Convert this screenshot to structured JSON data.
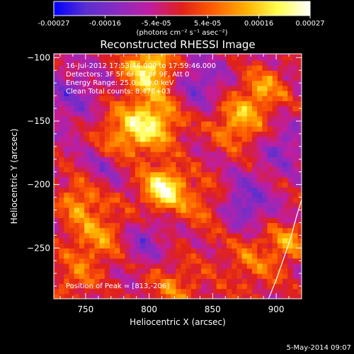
{
  "colorbar": {
    "tick_labels": [
      "-0.00027",
      "-0.00016",
      "-5.4e-05",
      "5.4e-05",
      "0.00016",
      "0.00027"
    ],
    "unit_label": "(photons cm⁻² s⁻¹ asec⁻²)",
    "min": -0.00027,
    "max": 0.00027,
    "stops": [
      "#0000ff",
      "#5a2fd0",
      "#8a2bc0",
      "#c01ea0",
      "#e0201a",
      "#ff6000",
      "#ffb000",
      "#ffff50",
      "#ffffff"
    ]
  },
  "chart_data": {
    "type": "heatmap",
    "title": "Reconstructed RHESSI Image",
    "xlabel": "Heliocentric X (arcsec)",
    "ylabel": "Heliocentric Y (arcsec)",
    "xlim": [
      725,
      920
    ],
    "ylim": [
      -290,
      -97
    ],
    "xticks": [
      {
        "value": 750,
        "label": "750"
      },
      {
        "value": 800,
        "label": "800"
      },
      {
        "value": 850,
        "label": "850"
      },
      {
        "value": 900,
        "label": "900"
      }
    ],
    "yticks": [
      {
        "value": -100,
        "label": "−100"
      },
      {
        "value": -150,
        "label": "−150"
      },
      {
        "value": -200,
        "label": "−200"
      },
      {
        "value": -250,
        "label": "−250"
      }
    ],
    "annotations": [
      "16-Jul-2012 17:53:46.000 to 17:59:46.000",
      "Detectors: 3F 5F 6F 7F 8F 9F, Att 0",
      "Energy Range: 25.0 - 50.0 keV",
      "Clean     Total counts: 8.47E+03"
    ],
    "peak_label": "Position of Peak = [813,-206]",
    "peak": [
      813,
      -206
    ],
    "limb_curve": [
      [
        894,
        -290
      ],
      [
        900,
        -275
      ],
      [
        906,
        -258
      ],
      [
        912,
        -240
      ],
      [
        916,
        -225
      ],
      [
        920,
        -212
      ]
    ],
    "hot_spots": [
      {
        "x": 812,
        "y": -203,
        "value": 0.00027,
        "sigma": 12
      },
      {
        "x": 800,
        "y": -108,
        "value": 0.00024,
        "sigma": 14
      },
      {
        "x": 805,
        "y": -150,
        "value": 0.0002,
        "sigma": 15
      },
      {
        "x": 780,
        "y": -160,
        "value": 0.00015,
        "sigma": 16
      },
      {
        "x": 870,
        "y": -150,
        "value": 0.00017,
        "sigma": 14
      },
      {
        "x": 890,
        "y": -125,
        "value": 0.00015,
        "sigma": 12
      },
      {
        "x": 760,
        "y": -240,
        "value": 0.00014,
        "sigma": 18
      },
      {
        "x": 745,
        "y": -210,
        "value": 0.00012,
        "sigma": 12
      },
      {
        "x": 820,
        "y": -280,
        "value": 0.00011,
        "sigma": 16
      },
      {
        "x": 880,
        "y": -260,
        "value": 0.0001,
        "sigma": 18
      },
      {
        "x": 740,
        "y": -275,
        "value": 0.0001,
        "sigma": 12
      },
      {
        "x": 910,
        "y": -245,
        "value": 0.00014,
        "sigma": 10
      },
      {
        "x": 845,
        "y": -215,
        "value": 0.0001,
        "sigma": 14
      }
    ],
    "cold_spots": [
      {
        "x": 875,
        "y": -215,
        "value": -0.00014,
        "sigma": 14
      },
      {
        "x": 840,
        "y": -120,
        "value": -0.00011,
        "sigma": 14
      },
      {
        "x": 740,
        "y": -130,
        "value": -9e-05,
        "sigma": 16
      },
      {
        "x": 765,
        "y": -185,
        "value": -8e-05,
        "sigma": 12
      },
      {
        "x": 795,
        "y": -245,
        "value": -0.0001,
        "sigma": 14
      },
      {
        "x": 905,
        "y": -170,
        "value": -0.0001,
        "sigma": 12
      }
    ]
  },
  "footer": {
    "date": "5-May-2014 09:07"
  }
}
